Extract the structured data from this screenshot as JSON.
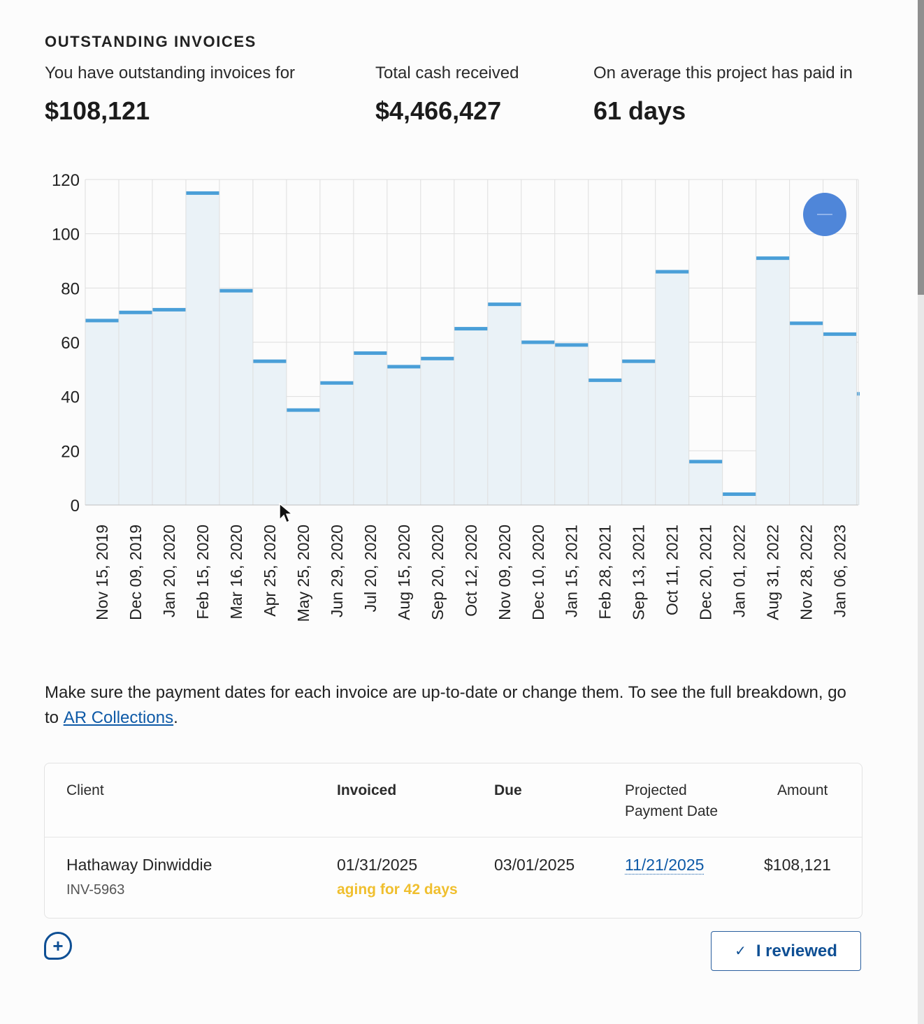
{
  "section_title": "OUTSTANDING INVOICES",
  "stats": [
    {
      "label": "You have outstanding invoices for",
      "value": "$108,121"
    },
    {
      "label": "Total cash received",
      "value": "$4,466,427"
    },
    {
      "label": "On average this project has paid in",
      "value": "61 days"
    }
  ],
  "chart_data": {
    "type": "bar",
    "title": "",
    "xlabel": "",
    "ylabel": "",
    "ylim": [
      0,
      120
    ],
    "yticks": [
      0,
      20,
      40,
      60,
      80,
      100,
      120
    ],
    "grid": true,
    "categories": [
      "Nov 15, 2019",
      "Dec 09, 2019",
      "Jan 20, 2020",
      "Feb 15, 2020",
      "Mar 16, 2020",
      "Apr 25, 2020",
      "May 25, 2020",
      "Jun 29, 2020",
      "Jul 20, 2020",
      "Aug 15, 2020",
      "Sep 20, 2020",
      "Oct 12, 2020",
      "Nov 09, 2020",
      "Dec 10, 2020",
      "Jan 15, 2021",
      "Feb 28, 2021",
      "Sep 13, 2021",
      "Oct 11, 2021",
      "Dec 20, 2021",
      "Jan 01, 2022",
      "Aug 31, 2022",
      "Nov 28, 2022",
      "Jan 06, 2023"
    ],
    "values": [
      68,
      71,
      72,
      115,
      79,
      53,
      35,
      45,
      56,
      51,
      54,
      65,
      74,
      60,
      59,
      46,
      53,
      86,
      16,
      4,
      91,
      67,
      63
    ],
    "trailing_value": 41,
    "colors": {
      "bar_fill": "#eaf2f7",
      "bar_top": "#4a9fd8",
      "grid": "#dedede"
    }
  },
  "note": {
    "text_before": "Make sure the payment dates for each invoice are up-to-date or change them. To see the full breakdown, go to ",
    "link_text": "AR Collections",
    "text_after": "."
  },
  "table": {
    "headers": {
      "client": "Client",
      "invoiced": "Invoiced",
      "due": "Due",
      "projected": "Projected Payment Date",
      "amount": "Amount"
    },
    "rows": [
      {
        "client": "Hathaway Dinwiddie",
        "invoice_no": "INV-5963",
        "invoiced": "01/31/2025",
        "aging": "aging for 42 days",
        "due": "03/01/2025",
        "projected": "11/21/2025",
        "amount": "$108,121"
      }
    ]
  },
  "actions": {
    "reviewed_label": "I reviewed",
    "add_icon": "plus-circle-icon",
    "check_icon": "check-icon"
  }
}
